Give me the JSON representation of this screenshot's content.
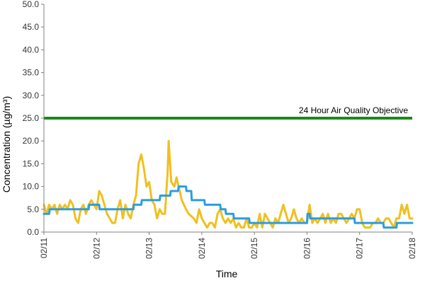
{
  "chart_data": {
    "type": "line",
    "xlabel": "Time",
    "ylabel": "Concentration (µg/m³)",
    "ylim": [
      0,
      50
    ],
    "yticks": [
      "0.0",
      "5.0",
      "10.0",
      "15.0",
      "20.0",
      "25.0",
      "30.0",
      "35.0",
      "40.0",
      "45.0",
      "50.0"
    ],
    "xlim": [
      0,
      7
    ],
    "xtick_labels": [
      "02/11",
      "02/12",
      "02/13",
      "02/14",
      "02/15",
      "02/16",
      "02/17",
      "02/18"
    ],
    "grid": false,
    "objective": {
      "label": "24 Hour Air Quality Objective",
      "value": 25,
      "color": "#1a8a1a"
    },
    "series": [
      {
        "color": "#f0c020",
        "points": [
          [
            0.0,
            6
          ],
          [
            0.05,
            4
          ],
          [
            0.1,
            6
          ],
          [
            0.15,
            5
          ],
          [
            0.2,
            6
          ],
          [
            0.25,
            4
          ],
          [
            0.3,
            6
          ],
          [
            0.35,
            5
          ],
          [
            0.4,
            6
          ],
          [
            0.45,
            5
          ],
          [
            0.5,
            7
          ],
          [
            0.55,
            6
          ],
          [
            0.6,
            3
          ],
          [
            0.65,
            2
          ],
          [
            0.7,
            5
          ],
          [
            0.75,
            6
          ],
          [
            0.8,
            4
          ],
          [
            0.85,
            6
          ],
          [
            0.9,
            7
          ],
          [
            0.95,
            6
          ],
          [
            1.0,
            5
          ],
          [
            1.05,
            9
          ],
          [
            1.1,
            8
          ],
          [
            1.15,
            6
          ],
          [
            1.2,
            4
          ],
          [
            1.25,
            3
          ],
          [
            1.3,
            2
          ],
          [
            1.35,
            2
          ],
          [
            1.4,
            5
          ],
          [
            1.45,
            7
          ],
          [
            1.5,
            3
          ],
          [
            1.55,
            6
          ],
          [
            1.6,
            4
          ],
          [
            1.65,
            3
          ],
          [
            1.7,
            6
          ],
          [
            1.75,
            8
          ],
          [
            1.8,
            15
          ],
          [
            1.85,
            17
          ],
          [
            1.9,
            14
          ],
          [
            1.95,
            10
          ],
          [
            2.0,
            11
          ],
          [
            2.05,
            7
          ],
          [
            2.1,
            6
          ],
          [
            2.15,
            3
          ],
          [
            2.2,
            5
          ],
          [
            2.25,
            4
          ],
          [
            2.3,
            4
          ],
          [
            2.35,
            13
          ],
          [
            2.37,
            20
          ],
          [
            2.42,
            11
          ],
          [
            2.48,
            10
          ],
          [
            2.52,
            12
          ],
          [
            2.58,
            9
          ],
          [
            2.62,
            7
          ],
          [
            2.7,
            5
          ],
          [
            2.75,
            4
          ],
          [
            2.85,
            3
          ],
          [
            2.9,
            2
          ],
          [
            2.95,
            5
          ],
          [
            3.0,
            3
          ],
          [
            3.05,
            2
          ],
          [
            3.1,
            1
          ],
          [
            3.15,
            2
          ],
          [
            3.2,
            2
          ],
          [
            3.25,
            1
          ],
          [
            3.3,
            4
          ],
          [
            3.35,
            5
          ],
          [
            3.4,
            3
          ],
          [
            3.45,
            2
          ],
          [
            3.5,
            3
          ],
          [
            3.55,
            2
          ],
          [
            3.6,
            3
          ],
          [
            3.65,
            1
          ],
          [
            3.7,
            2
          ],
          [
            3.75,
            1
          ],
          [
            3.8,
            1
          ],
          [
            3.85,
            3
          ],
          [
            3.9,
            1
          ],
          [
            3.95,
            1
          ],
          [
            4.0,
            2
          ],
          [
            4.05,
            1
          ],
          [
            4.1,
            4
          ],
          [
            4.15,
            1
          ],
          [
            4.2,
            4
          ],
          [
            4.25,
            3
          ],
          [
            4.3,
            2
          ],
          [
            4.35,
            1
          ],
          [
            4.4,
            3
          ],
          [
            4.45,
            2
          ],
          [
            4.5,
            4
          ],
          [
            4.55,
            6
          ],
          [
            4.6,
            4
          ],
          [
            4.65,
            2
          ],
          [
            4.7,
            3
          ],
          [
            4.75,
            5
          ],
          [
            4.8,
            3
          ],
          [
            4.85,
            2
          ],
          [
            4.9,
            3
          ],
          [
            4.95,
            2
          ],
          [
            5.0,
            2
          ],
          [
            5.05,
            6
          ],
          [
            5.1,
            2
          ],
          [
            5.15,
            3
          ],
          [
            5.2,
            2
          ],
          [
            5.25,
            3
          ],
          [
            5.3,
            4
          ],
          [
            5.35,
            2
          ],
          [
            5.4,
            4
          ],
          [
            5.45,
            2
          ],
          [
            5.5,
            3
          ],
          [
            5.55,
            2
          ],
          [
            5.6,
            4
          ],
          [
            5.65,
            4
          ],
          [
            5.7,
            3
          ],
          [
            5.75,
            2
          ],
          [
            5.8,
            3
          ],
          [
            5.85,
            4
          ],
          [
            5.9,
            3
          ],
          [
            5.95,
            5
          ],
          [
            6.0,
            5
          ],
          [
            6.05,
            2
          ],
          [
            6.1,
            1
          ],
          [
            6.15,
            1
          ],
          [
            6.2,
            1
          ],
          [
            6.25,
            2
          ],
          [
            6.3,
            2
          ],
          [
            6.35,
            3
          ],
          [
            6.4,
            2
          ],
          [
            6.45,
            2
          ],
          [
            6.5,
            3
          ],
          [
            6.55,
            3
          ],
          [
            6.6,
            2
          ],
          [
            6.65,
            1
          ],
          [
            6.7,
            3
          ],
          [
            6.75,
            3
          ],
          [
            6.8,
            6
          ],
          [
            6.85,
            4
          ],
          [
            6.9,
            6
          ],
          [
            6.95,
            3
          ],
          [
            7.0,
            3
          ]
        ]
      },
      {
        "color": "#2b9de0",
        "points": [
          [
            0.0,
            4
          ],
          [
            0.1,
            4
          ],
          [
            0.11,
            5
          ],
          [
            0.85,
            5
          ],
          [
            0.86,
            6
          ],
          [
            1.05,
            6
          ],
          [
            1.06,
            5
          ],
          [
            1.7,
            5
          ],
          [
            1.71,
            6
          ],
          [
            1.85,
            6
          ],
          [
            1.86,
            7
          ],
          [
            2.2,
            7
          ],
          [
            2.21,
            8
          ],
          [
            2.4,
            8
          ],
          [
            2.41,
            9
          ],
          [
            2.55,
            9
          ],
          [
            2.56,
            10
          ],
          [
            2.7,
            10
          ],
          [
            2.71,
            9
          ],
          [
            2.8,
            9
          ],
          [
            2.81,
            7
          ],
          [
            3.05,
            7
          ],
          [
            3.06,
            6
          ],
          [
            3.35,
            6
          ],
          [
            3.36,
            5
          ],
          [
            3.45,
            5
          ],
          [
            3.46,
            4
          ],
          [
            3.6,
            4
          ],
          [
            3.61,
            3
          ],
          [
            3.9,
            3
          ],
          [
            3.91,
            2
          ],
          [
            5.0,
            2
          ],
          [
            5.01,
            4
          ],
          [
            5.05,
            4
          ],
          [
            5.06,
            3
          ],
          [
            5.9,
            3
          ],
          [
            5.91,
            2
          ],
          [
            6.45,
            2
          ],
          [
            6.46,
            1
          ],
          [
            6.7,
            1
          ],
          [
            6.71,
            2
          ],
          [
            7.0,
            2
          ]
        ]
      }
    ]
  }
}
